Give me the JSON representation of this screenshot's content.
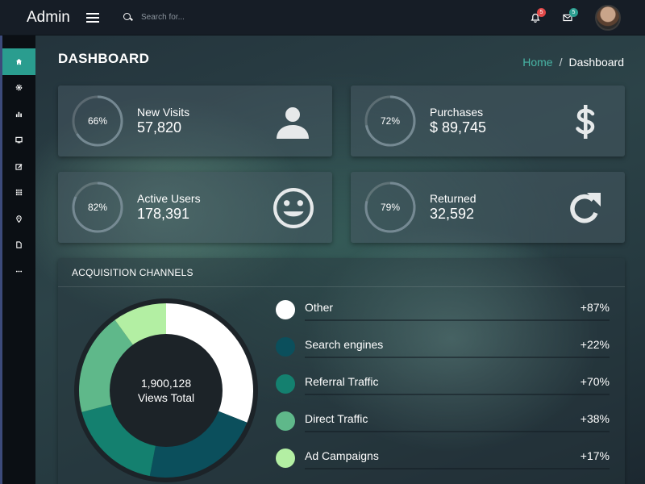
{
  "header": {
    "brand": "Admin",
    "search_placeholder": "Search for...",
    "notifications_count": "5",
    "messages_count": "5",
    "notif_badge_color": "#e04848",
    "msg_badge_color": "#2a9d8f"
  },
  "sidebar": {
    "active_color": "#2a9d8f",
    "items": [
      {
        "icon": "home-icon",
        "active": true
      },
      {
        "icon": "gear-icon",
        "active": false
      },
      {
        "icon": "bar-chart-icon",
        "active": false
      },
      {
        "icon": "monitor-icon",
        "active": false
      },
      {
        "icon": "edit-icon",
        "active": false
      },
      {
        "icon": "grid-icon",
        "active": false
      },
      {
        "icon": "map-pin-icon",
        "active": false
      },
      {
        "icon": "document-icon",
        "active": false
      },
      {
        "icon": "more-icon",
        "active": false
      }
    ]
  },
  "page": {
    "title": "DASHBOARD",
    "breadcrumb_home": "Home",
    "breadcrumb_sep": "/",
    "breadcrumb_current": "Dashboard"
  },
  "stats": [
    {
      "label": "New Visits",
      "value": "57,820",
      "percent": "66%",
      "fraction": 0.66,
      "icon": "user-icon"
    },
    {
      "label": "Purchases",
      "value": "$ 89,745",
      "percent": "72%",
      "fraction": 0.72,
      "icon": "dollar-icon"
    },
    {
      "label": "Active Users",
      "value": "178,391",
      "percent": "82%",
      "fraction": 0.82,
      "icon": "smiley-icon"
    },
    {
      "label": "Returned",
      "value": "32,592",
      "percent": "79%",
      "fraction": 0.79,
      "icon": "refresh-icon"
    }
  ],
  "acquisition": {
    "title": "ACQUISITION CHANNELS",
    "total_value": "1,900,128",
    "total_label": "Views Total",
    "channels": [
      {
        "name": "Other",
        "change": "+87%",
        "color": "#ffffff"
      },
      {
        "name": "Search engines",
        "change": "+22%",
        "color": "#0b4f5c"
      },
      {
        "name": "Referral Traffic",
        "change": "+70%",
        "color": "#14806f"
      },
      {
        "name": "Direct Traffic",
        "change": "+38%",
        "color": "#5fb88a"
      },
      {
        "name": "Ad Campaigns",
        "change": "+17%",
        "color": "#b3efa3"
      }
    ]
  }
}
